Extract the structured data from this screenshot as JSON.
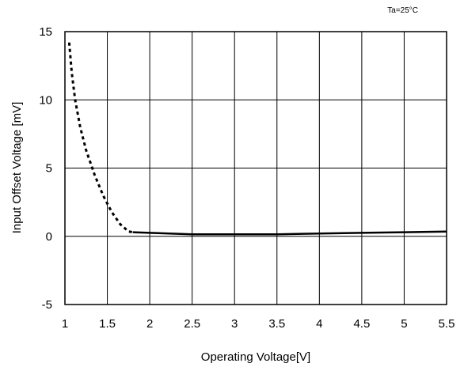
{
  "chart_data": {
    "type": "line",
    "annotation": "Ta=25°C",
    "xlabel": "Operating Voltage[V]",
    "ylabel": "Input Offset Voltage [mV]",
    "xlim": [
      1,
      5.5
    ],
    "ylim": [
      -5,
      15
    ],
    "xticks": [
      1,
      1.5,
      2,
      2.5,
      3,
      3.5,
      4,
      4.5,
      5,
      5.5
    ],
    "xtick_labels": [
      "1",
      "1.5",
      "2",
      "2.5",
      "3",
      "3.5",
      "4",
      "4.5",
      "5",
      "5.5"
    ],
    "yticks": [
      -5,
      0,
      5,
      10,
      15
    ],
    "ytick_labels": [
      "-5",
      "0",
      "5",
      "10",
      "15"
    ],
    "grid": true,
    "series": [
      {
        "style": "dotted",
        "x": [
          1.05,
          1.08,
          1.12,
          1.18,
          1.25,
          1.35,
          1.45,
          1.55,
          1.65,
          1.75,
          1.8
        ],
        "y": [
          14.2,
          12.0,
          10.0,
          8.0,
          6.3,
          4.5,
          3.0,
          1.8,
          0.9,
          0.35,
          0.3
        ]
      },
      {
        "style": "solid",
        "x": [
          1.8,
          2.0,
          2.5,
          3.0,
          3.5,
          4.0,
          4.5,
          5.0,
          5.5
        ],
        "y": [
          0.3,
          0.25,
          0.15,
          0.15,
          0.15,
          0.2,
          0.25,
          0.3,
          0.35
        ]
      }
    ]
  }
}
